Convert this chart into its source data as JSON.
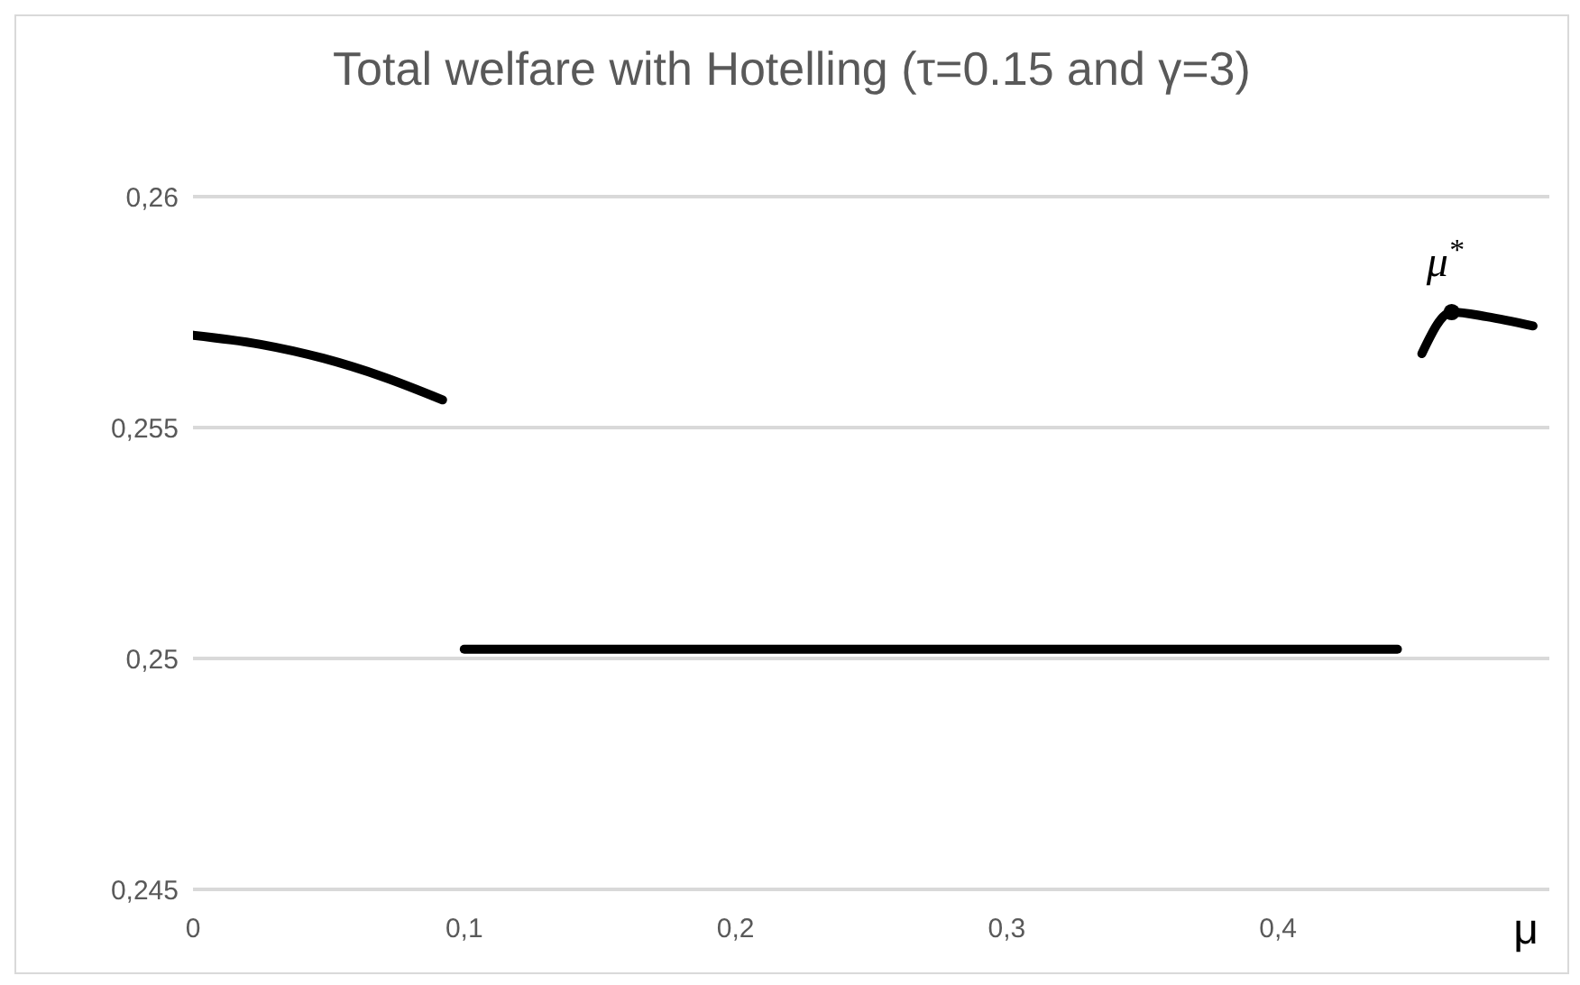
{
  "chart_data": {
    "type": "line",
    "title": "Total welfare with Hotelling (τ=0.15 and γ=3)",
    "xlabel": "μ",
    "xlim": [
      0,
      0.5
    ],
    "xticks": [
      {
        "value": 0,
        "label": "0"
      },
      {
        "value": 0.1,
        "label": "0,1"
      },
      {
        "value": 0.2,
        "label": "0,2"
      },
      {
        "value": 0.3,
        "label": "0,3"
      },
      {
        "value": 0.4,
        "label": "0,4"
      }
    ],
    "ylim": [
      0.245,
      0.26
    ],
    "yticks": [
      {
        "value": 0.245,
        "label": "0,245"
      },
      {
        "value": 0.25,
        "label": "0,25"
      },
      {
        "value": 0.255,
        "label": "0,255"
      },
      {
        "value": 0.26,
        "label": "0,26"
      }
    ],
    "grid": "y",
    "line_style": "solid",
    "marker": "none",
    "series": [
      {
        "color": "#000000",
        "x": [
          0,
          0.025,
          0.048,
          0.07,
          0.092
        ],
        "values": [
          0.257,
          0.2568,
          0.2565,
          0.2561,
          0.2556
        ]
      },
      {
        "color": "#000000",
        "x": [
          0.1,
          0.2,
          0.3,
          0.444
        ],
        "values": [
          0.2502,
          0.2502,
          0.2502,
          0.2502
        ]
      },
      {
        "color": "#000000",
        "x": [
          0.453,
          0.464,
          0.477,
          0.494
        ],
        "values": [
          0.2566,
          0.2575,
          0.2574,
          0.2572
        ]
      },
      {
        "type": "scatter",
        "color": "#000000",
        "marker": "circle",
        "x": [
          0.464
        ],
        "values": [
          0.2575
        ]
      }
    ],
    "annotations": [
      {
        "text": "μ$^{*}$",
        "x": 0.464,
        "y": 0.2575
      }
    ]
  }
}
